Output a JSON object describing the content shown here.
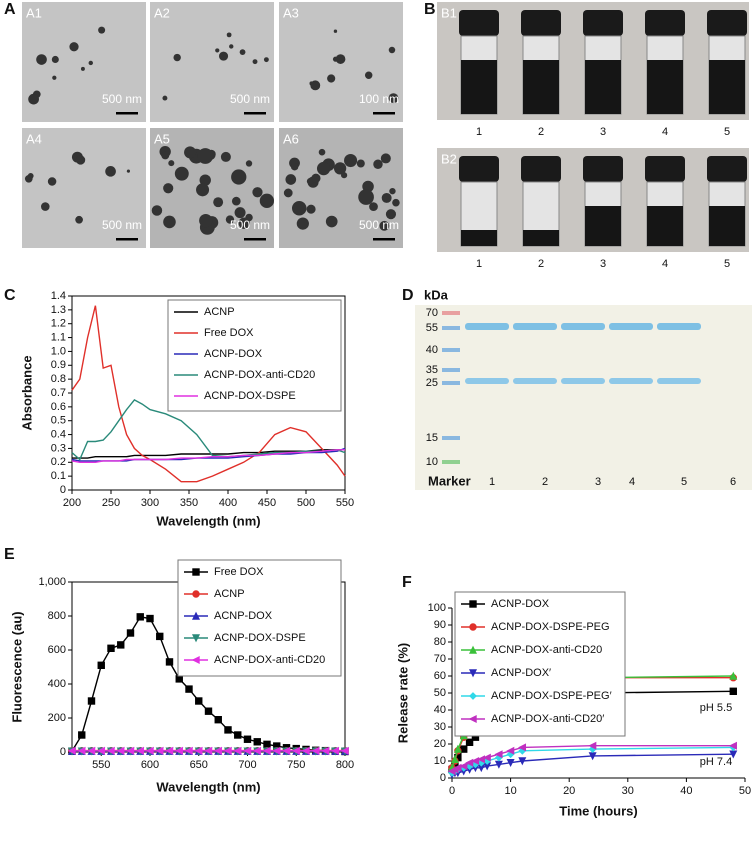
{
  "panels": {
    "A": {
      "label": "A",
      "images": [
        {
          "label": "A1",
          "scale": "500 nm"
        },
        {
          "label": "A2",
          "scale": "500 nm"
        },
        {
          "label": "A3",
          "scale": "100 nm"
        },
        {
          "label": "A4",
          "scale": "500 nm"
        },
        {
          "label": "A5",
          "scale": "500 nm"
        },
        {
          "label": "A6",
          "scale": "500 nm"
        }
      ]
    },
    "B": {
      "label": "B",
      "photos": [
        {
          "label": "B1",
          "vials": [
            "1",
            "2",
            "3",
            "4",
            "5"
          ]
        },
        {
          "label": "B2",
          "vials": [
            "1",
            "2",
            "3",
            "4",
            "5"
          ]
        }
      ]
    },
    "D": {
      "label": "D",
      "unit": "kDa",
      "markers": [
        "70",
        "55",
        "40",
        "35",
        "25",
        "15",
        "10"
      ],
      "lanes": [
        "Marker",
        "1",
        "2",
        "3",
        "4",
        "5",
        "6"
      ]
    }
  },
  "chart_data": [
    {
      "type": "line",
      "panel": "C",
      "x_label": "Wavelength (nm)",
      "y_label": "Absorbance",
      "frame": true,
      "legend": "upper right",
      "x": [
        200,
        210,
        220,
        230,
        240,
        250,
        260,
        270,
        280,
        290,
        300,
        320,
        340,
        360,
        380,
        400,
        420,
        440,
        460,
        480,
        500,
        520,
        540,
        550
      ],
      "xlim": [
        200,
        550
      ],
      "xticks": [
        200,
        250,
        300,
        350,
        400,
        450,
        500,
        550
      ],
      "ylim": [
        0,
        1.4
      ],
      "yticks": [
        0,
        0.1,
        0.2,
        0.3,
        0.4,
        0.5,
        0.6,
        0.7,
        0.8,
        0.9,
        {
          "value": 1,
          "label": "1.0"
        },
        1.1,
        1.2,
        1.3,
        1.4
      ],
      "series": [
        {
          "name": "ACNP",
          "color": "#000000",
          "values": [
            0.23,
            0.23,
            0.23,
            0.24,
            0.24,
            0.24,
            0.24,
            0.24,
            0.25,
            0.25,
            0.25,
            0.25,
            0.26,
            0.26,
            0.26,
            0.26,
            0.27,
            0.27,
            0.28,
            0.28,
            0.28,
            0.29,
            0.29,
            0.29
          ]
        },
        {
          "name": "Free DOX",
          "color": "#e0302a",
          "values": [
            0.72,
            0.8,
            1.1,
            1.33,
            0.88,
            0.9,
            0.6,
            0.4,
            0.3,
            0.25,
            0.22,
            0.15,
            0.06,
            0.06,
            0.1,
            0.15,
            0.2,
            0.27,
            0.4,
            0.45,
            0.42,
            0.3,
            0.18,
            0.1
          ]
        },
        {
          "name": "ACNP-DOX",
          "color": "#2a2ab8",
          "values": [
            0.22,
            0.21,
            0.21,
            0.21,
            0.21,
            0.21,
            0.21,
            0.21,
            0.22,
            0.22,
            0.22,
            0.22,
            0.22,
            0.23,
            0.23,
            0.23,
            0.24,
            0.25,
            0.26,
            0.26,
            0.27,
            0.27,
            0.28,
            0.3
          ]
        },
        {
          "name": "ACNP-DOX-anti-CD20",
          "color": "#2a8a7a",
          "values": [
            0.27,
            0.22,
            0.35,
            0.35,
            0.36,
            0.42,
            0.5,
            0.58,
            0.65,
            0.62,
            0.58,
            0.55,
            0.5,
            0.4,
            0.25,
            0.24,
            0.25,
            0.26,
            0.27,
            0.27,
            0.28,
            0.28,
            0.29,
            0.27
          ]
        },
        {
          "name": "ACNP-DOX-DSPE",
          "color": "#e030e0",
          "values": [
            0.21,
            0.2,
            0.2,
            0.2,
            0.21,
            0.21,
            0.21,
            0.22,
            0.22,
            0.22,
            0.22,
            0.22,
            0.23,
            0.23,
            0.24,
            0.24,
            0.25,
            0.25,
            0.26,
            0.27,
            0.27,
            0.28,
            0.29,
            0.29
          ]
        }
      ]
    },
    {
      "type": "line",
      "panel": "E",
      "x_label": "Wavelength (nm)",
      "y_label": "Fluorescence (au)",
      "frame": true,
      "legend": "upper right",
      "x": [
        520,
        530,
        540,
        550,
        560,
        570,
        580,
        590,
        600,
        610,
        620,
        630,
        640,
        650,
        660,
        670,
        680,
        690,
        700,
        710,
        720,
        730,
        740,
        750,
        760,
        770,
        780,
        790,
        800
      ],
      "xlim": [
        520,
        800
      ],
      "xticks": [
        550,
        600,
        650,
        700,
        750,
        800
      ],
      "ylim": [
        0,
        1000
      ],
      "yticks": [
        0,
        200,
        400,
        600,
        800,
        {
          "value": 1000,
          "label": "1,000"
        }
      ],
      "series": [
        {
          "name": "Free DOX",
          "color": "#000000",
          "marker": "square",
          "values": [
            5,
            100,
            300,
            510,
            610,
            630,
            700,
            795,
            785,
            680,
            530,
            430,
            370,
            300,
            240,
            190,
            130,
            100,
            75,
            60,
            45,
            35,
            25,
            20,
            15,
            10,
            8,
            5,
            3
          ]
        },
        {
          "name": "ACNP",
          "color": "#e0302a",
          "marker": "circle",
          "values": [
            8,
            8,
            8,
            8,
            8,
            8,
            8,
            8,
            8,
            8,
            8,
            8,
            8,
            8,
            8,
            8,
            8,
            8,
            8,
            8,
            8,
            8,
            8,
            8,
            8,
            8,
            8,
            8,
            8
          ]
        },
        {
          "name": "ACNP-DOX",
          "color": "#2a2ab8",
          "marker": "triangle",
          "values": [
            5,
            5,
            5,
            5,
            5,
            5,
            5,
            5,
            5,
            5,
            5,
            5,
            5,
            5,
            5,
            5,
            5,
            5,
            5,
            5,
            5,
            5,
            5,
            5,
            5,
            5,
            5,
            5,
            5
          ]
        },
        {
          "name": "ACNP-DOX-DSPE",
          "color": "#2a8a7a",
          "marker": "down",
          "values": [
            5,
            5,
            5,
            5,
            5,
            5,
            5,
            5,
            5,
            5,
            5,
            5,
            5,
            5,
            5,
            5,
            5,
            5,
            5,
            5,
            5,
            5,
            5,
            5,
            5,
            5,
            5,
            5,
            5
          ]
        },
        {
          "name": "ACNP-DOX-anti-CD20",
          "color": "#e030e0",
          "marker": "left",
          "values": [
            7,
            7,
            7,
            7,
            7,
            7,
            7,
            7,
            7,
            7,
            7,
            7,
            7,
            7,
            7,
            7,
            7,
            7,
            7,
            7,
            7,
            7,
            7,
            7,
            7,
            7,
            7,
            7,
            7
          ]
        }
      ]
    },
    {
      "type": "line",
      "panel": "F",
      "x_label": "Time (hours)",
      "y_label": "Release rate (%)",
      "frame": false,
      "legend": "upper left",
      "annotations": [
        "pH 5.5",
        "pH 7.4"
      ],
      "x": [
        0,
        0.5,
        1,
        2,
        3,
        4,
        5,
        6,
        8,
        10,
        12,
        24,
        48
      ],
      "xlim": [
        0,
        50
      ],
      "xticks": [
        0,
        10,
        20,
        30,
        40,
        50
      ],
      "ylim": [
        0,
        100
      ],
      "yticks": [
        0,
        10,
        20,
        30,
        40,
        50,
        60,
        70,
        80,
        90,
        100
      ],
      "series": [
        {
          "name": "ACNP-DOX",
          "color": "#000000",
          "marker": "square",
          "values": [
            5,
            8,
            12,
            17,
            21,
            24,
            27,
            31,
            37,
            43,
            46,
            50,
            51
          ]
        },
        {
          "name": "ACNP-DOX-DSPE-PEG",
          "color": "#e0302a",
          "marker": "circle",
          "values": [
            6,
            10,
            16,
            24,
            30,
            35,
            40,
            42,
            47,
            53,
            58,
            59,
            59
          ]
        },
        {
          "name": "ACNP-DOX-anti-CD20",
          "color": "#3ac03a",
          "marker": "triangle",
          "values": [
            6,
            11,
            17,
            25,
            31,
            36,
            41,
            44,
            49,
            55,
            59,
            59,
            60
          ]
        },
        {
          "name": "ACNP-DOX′",
          "color": "#2a2ab8",
          "marker": "down",
          "values": [
            2,
            3,
            3,
            4,
            5,
            6,
            6,
            7,
            8,
            9,
            10,
            13,
            14
          ]
        },
        {
          "name": "ACNP-DOX-DSPE-PEG′",
          "color": "#30d8e8",
          "marker": "diamond",
          "values": [
            3,
            4,
            5,
            6,
            7,
            8,
            9,
            10,
            12,
            14,
            16,
            17,
            18
          ]
        },
        {
          "name": "ACNP-DOX-anti-CD20′",
          "color": "#c030c0",
          "marker": "left",
          "values": [
            4,
            5,
            6,
            7,
            9,
            10,
            11,
            12,
            14,
            16,
            18,
            19,
            19
          ]
        }
      ]
    }
  ]
}
